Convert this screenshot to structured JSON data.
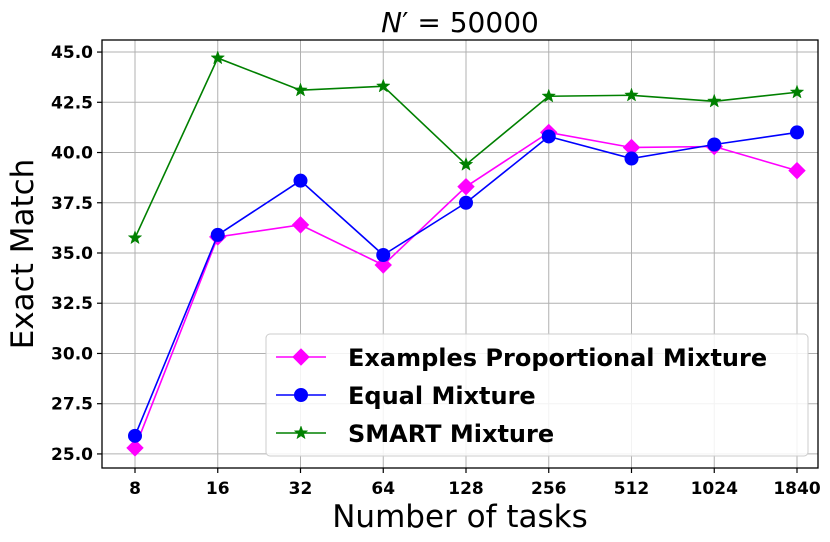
{
  "chart_data": {
    "type": "line",
    "title": "N' = 50000",
    "title_parts": {
      "symbol": "N",
      "prime": "′",
      "rest": " = 50000"
    },
    "xlabel": "Number of tasks",
    "ylabel": "Exact Match",
    "categories": [
      "8",
      "16",
      "32",
      "64",
      "128",
      "256",
      "512",
      "1024",
      "1840"
    ],
    "yticks": [
      "25.0",
      "27.5",
      "30.0",
      "32.5",
      "35.0",
      "37.5",
      "40.0",
      "42.5",
      "45.0"
    ],
    "ylim": [
      24.3,
      45.6
    ],
    "grid": true,
    "legend_position": "lower-right",
    "series": [
      {
        "name": "Examples Proportional Mixture",
        "color": "#ff00ff",
        "marker": "diamond",
        "values": [
          25.3,
          35.8,
          36.4,
          34.4,
          38.3,
          41.0,
          40.25,
          40.3,
          39.1
        ]
      },
      {
        "name": "Equal Mixture",
        "color": "#0000ff",
        "marker": "circle",
        "values": [
          25.9,
          35.9,
          38.6,
          34.9,
          37.5,
          40.8,
          39.7,
          40.4,
          41.0
        ]
      },
      {
        "name": "SMART Mixture",
        "color": "#008000",
        "marker": "star",
        "values": [
          35.75,
          44.7,
          43.1,
          43.3,
          39.4,
          42.8,
          42.85,
          42.55,
          43.0
        ]
      }
    ]
  }
}
